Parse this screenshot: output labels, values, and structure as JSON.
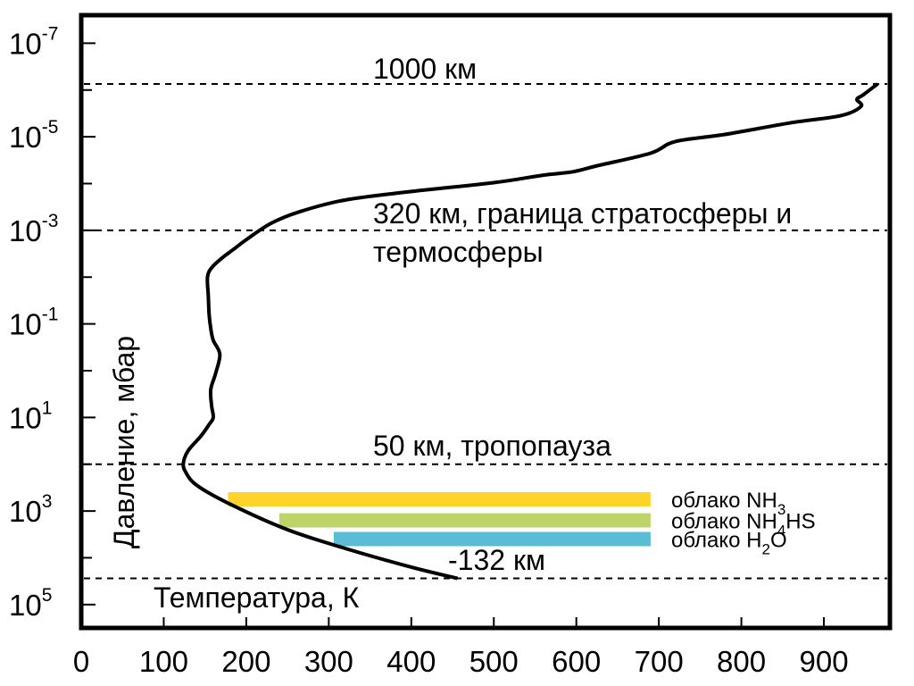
{
  "chart_data": {
    "type": "line",
    "xlabel": "Температура, К",
    "ylabel": "Давление, мбар",
    "xlim": [
      0,
      980
    ],
    "ylim": [
      -7.6,
      5.5
    ],
    "y_scale": "log",
    "grid": false,
    "x_ticks": [
      "0",
      "100",
      "200",
      "300",
      "400",
      "500",
      "600",
      "700",
      "800",
      "900"
    ],
    "x_tick_values": [
      0,
      100,
      200,
      300,
      400,
      500,
      600,
      700,
      800,
      900
    ],
    "y_ticks": [
      {
        "base": "10",
        "exp": "-7",
        "value": -7
      },
      {
        "base": "10",
        "exp": "-5",
        "value": -5
      },
      {
        "base": "10",
        "exp": "-3",
        "value": -3
      },
      {
        "base": "10",
        "exp": "-1",
        "value": -1
      },
      {
        "base": "10",
        "exp": "1",
        "value": 1
      },
      {
        "base": "10",
        "exp": "3",
        "value": 3
      },
      {
        "base": "10",
        "exp": "5",
        "value": 5
      }
    ],
    "y_minor_ticks": [
      -6,
      -4,
      -2,
      0,
      2,
      4
    ],
    "series": [
      {
        "name": "",
        "color": "#000000",
        "points": [
          [
            456,
            4.44
          ],
          [
            400,
            4.2
          ],
          [
            320,
            3.8
          ],
          [
            250,
            3.4
          ],
          [
            180,
            2.85
          ],
          [
            140,
            2.45
          ],
          [
            126,
            2.15
          ],
          [
            124,
            1.95
          ],
          [
            130,
            1.7
          ],
          [
            145,
            1.4
          ],
          [
            155,
            1.15
          ],
          [
            160,
            1.0
          ],
          [
            158,
            0.75
          ],
          [
            157,
            0.4
          ],
          [
            163,
            0.05
          ],
          [
            168,
            -0.35
          ],
          [
            160,
            -0.65
          ],
          [
            157,
            -0.9
          ],
          [
            155,
            -1.2
          ],
          [
            154,
            -1.6
          ],
          [
            153,
            -2.0
          ],
          [
            158,
            -2.2
          ],
          [
            170,
            -2.4
          ],
          [
            185,
            -2.6
          ],
          [
            200,
            -2.8
          ],
          [
            230,
            -3.15
          ],
          [
            265,
            -3.4
          ],
          [
            320,
            -3.65
          ],
          [
            400,
            -3.83
          ],
          [
            500,
            -4.02
          ],
          [
            560,
            -4.18
          ],
          [
            595,
            -4.25
          ],
          [
            625,
            -4.38
          ],
          [
            690,
            -4.65
          ],
          [
            720,
            -4.9
          ],
          [
            780,
            -5.05
          ],
          [
            860,
            -5.3
          ],
          [
            920,
            -5.45
          ],
          [
            945,
            -5.65
          ],
          [
            940,
            -5.8
          ],
          [
            948,
            -5.9
          ],
          [
            965,
            -6.13
          ]
        ]
      }
    ],
    "reference_lines": [
      {
        "y": -6.13,
        "label": "1000 км"
      },
      {
        "y": -3.0,
        "label": "320 км, граница стратосферы и",
        "label2": "термосферы"
      },
      {
        "y": 2.0,
        "label": "50 км, тропопауза"
      },
      {
        "y": 4.44,
        "label": "-132 км"
      }
    ],
    "bars": [
      {
        "name": "облако NH3",
        "text": "облако NH",
        "sub": "3",
        "after": "",
        "x_start": 178,
        "x_end": 690,
        "y": 2.75,
        "color": "#FFD42A"
      },
      {
        "name": "облако NH4HS",
        "text": "облако NH",
        "sub": "4",
        "after": "HS",
        "x_start": 240,
        "x_end": 690,
        "y": 3.2,
        "color": "#BDD467"
      },
      {
        "name": "облако H2O",
        "text": "облако H",
        "sub": "2",
        "after": "O",
        "x_start": 306,
        "x_end": 690,
        "y": 3.6,
        "color": "#5BBCD6"
      }
    ]
  }
}
